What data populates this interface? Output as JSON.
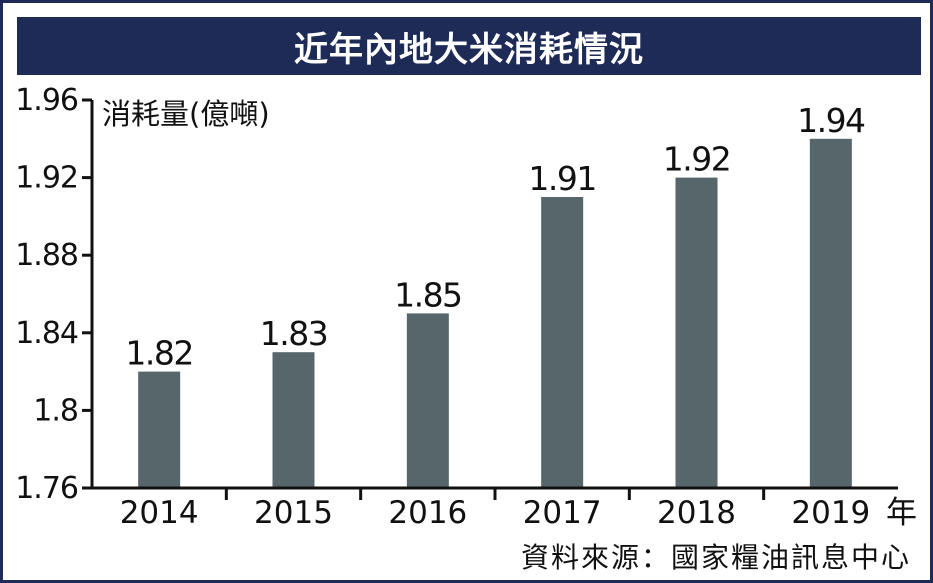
{
  "title": "近年內地大米消耗情況",
  "source": "資料來源：國家糧油訊息中心",
  "colors": {
    "bar": "#56666a",
    "title_bg": "#1e2b57",
    "axis": "#111111"
  },
  "chart_data": {
    "type": "bar",
    "title": "近年內地大米消耗情況",
    "ylabel": "消耗量(億噸)",
    "xlabel": "年",
    "categories": [
      "2014",
      "2015",
      "2016",
      "2017",
      "2018",
      "2019"
    ],
    "values": [
      1.82,
      1.83,
      1.85,
      1.91,
      1.92,
      1.94
    ],
    "value_labels": [
      "1.82",
      "1.83",
      "1.85",
      "1.91",
      "1.92",
      "1.94"
    ],
    "ylim": [
      1.76,
      1.96
    ],
    "yticks": [
      1.76,
      1.8,
      1.84,
      1.88,
      1.92,
      1.96
    ],
    "ytick_labels": [
      "1.76",
      "1.8",
      "1.84",
      "1.88",
      "1.92",
      "1.96"
    ],
    "grid": false,
    "legend": "none"
  }
}
